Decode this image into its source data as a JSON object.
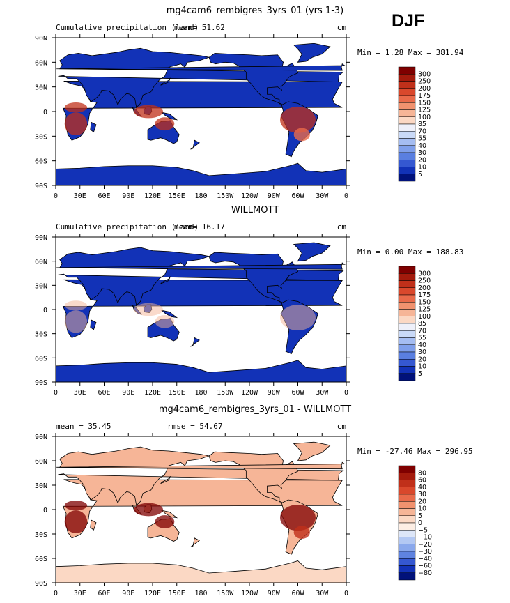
{
  "season": "DJF",
  "chart_data": [
    {
      "type": "heatmap",
      "title": "mg4cam6_rembigres_3yrs_01 (yrs 1-3)",
      "subtitle_left": "Cumulative precipitation (land)",
      "mean_label": "mean=",
      "mean_value": "51.62",
      "units": "cm",
      "min_label": "Min =",
      "min_value": "1.28",
      "max_label": "Max =",
      "max_value": "381.94",
      "colorbar": {
        "levels": [
          "300",
          "250",
          "200",
          "175",
          "150",
          "125",
          "100",
          "85",
          "70",
          "55",
          "40",
          "30",
          "20",
          "10",
          "5"
        ],
        "colors": [
          "#7f0000",
          "#a31a0c",
          "#c0301a",
          "#d9482c",
          "#e96a4a",
          "#f1926f",
          "#f6b597",
          "#fbd8c4",
          "#eef0fa",
          "#c9d9f7",
          "#a5bdf2",
          "#7f9feb",
          "#5a7fe0",
          "#3558d1",
          "#1232b7",
          "#01127a"
        ]
      },
      "xticks": [
        "0",
        "30E",
        "60E",
        "90E",
        "120E",
        "150E",
        "180",
        "150W",
        "120W",
        "90W",
        "60W",
        "30W",
        "0"
      ],
      "yticks": [
        "90N",
        "60N",
        "30N",
        "0",
        "30S",
        "60S",
        "90S"
      ]
    },
    {
      "type": "heatmap",
      "title": "WILLMOTT",
      "subtitle_left": "Cumulative precipitation (land)",
      "mean_label": "mean=",
      "mean_value": "16.17",
      "units": "cm",
      "min_label": "Min =",
      "min_value": "0.00",
      "max_label": "Max =",
      "max_value": "188.83",
      "colorbar": {
        "levels": [
          "300",
          "250",
          "200",
          "175",
          "150",
          "125",
          "100",
          "85",
          "70",
          "55",
          "40",
          "30",
          "20",
          "10",
          "5"
        ],
        "colors": [
          "#7f0000",
          "#a31a0c",
          "#c0301a",
          "#d9482c",
          "#e96a4a",
          "#f1926f",
          "#f6b597",
          "#fbd8c4",
          "#eef0fa",
          "#c9d9f7",
          "#a5bdf2",
          "#7f9feb",
          "#5a7fe0",
          "#3558d1",
          "#1232b7",
          "#01127a"
        ]
      },
      "xticks": [
        "0",
        "30E",
        "60E",
        "90E",
        "120E",
        "150E",
        "180",
        "150W",
        "120W",
        "90W",
        "60W",
        "30W",
        "0"
      ],
      "yticks": [
        "90N",
        "60N",
        "30N",
        "0",
        "30S",
        "60S",
        "90S"
      ]
    },
    {
      "type": "heatmap",
      "title": "mg4cam6_rembigres_3yrs_01 - WILLMOTT",
      "mean_label": "mean =",
      "mean_value": "35.45",
      "rmse_label": "rmse =",
      "rmse_value": "54.67",
      "units": "cm",
      "min_label": "Min =",
      "min_value": "-27.46",
      "max_label": "Max =",
      "max_value": "296.95",
      "colorbar": {
        "levels": [
          "80",
          "60",
          "40",
          "30",
          "20",
          "10",
          "5",
          "0",
          "−5",
          "−10",
          "−20",
          "−30",
          "−40",
          "−60",
          "−80"
        ],
        "colors": [
          "#7f0000",
          "#a31a0c",
          "#c0301a",
          "#d9482c",
          "#e96a4a",
          "#f1926f",
          "#f6b597",
          "#fbd8c4",
          "#fdeee4",
          "#dde6f8",
          "#b3c8f3",
          "#8aa8ec",
          "#5f83e0",
          "#3558d1",
          "#1232b7",
          "#01127a"
        ]
      },
      "xticks": [
        "0",
        "30E",
        "60E",
        "90E",
        "120E",
        "150E",
        "180",
        "150W",
        "120W",
        "90W",
        "60W",
        "30W",
        "0"
      ],
      "yticks": [
        "90N",
        "60N",
        "30N",
        "0",
        "30S",
        "60S",
        "90S"
      ]
    }
  ]
}
